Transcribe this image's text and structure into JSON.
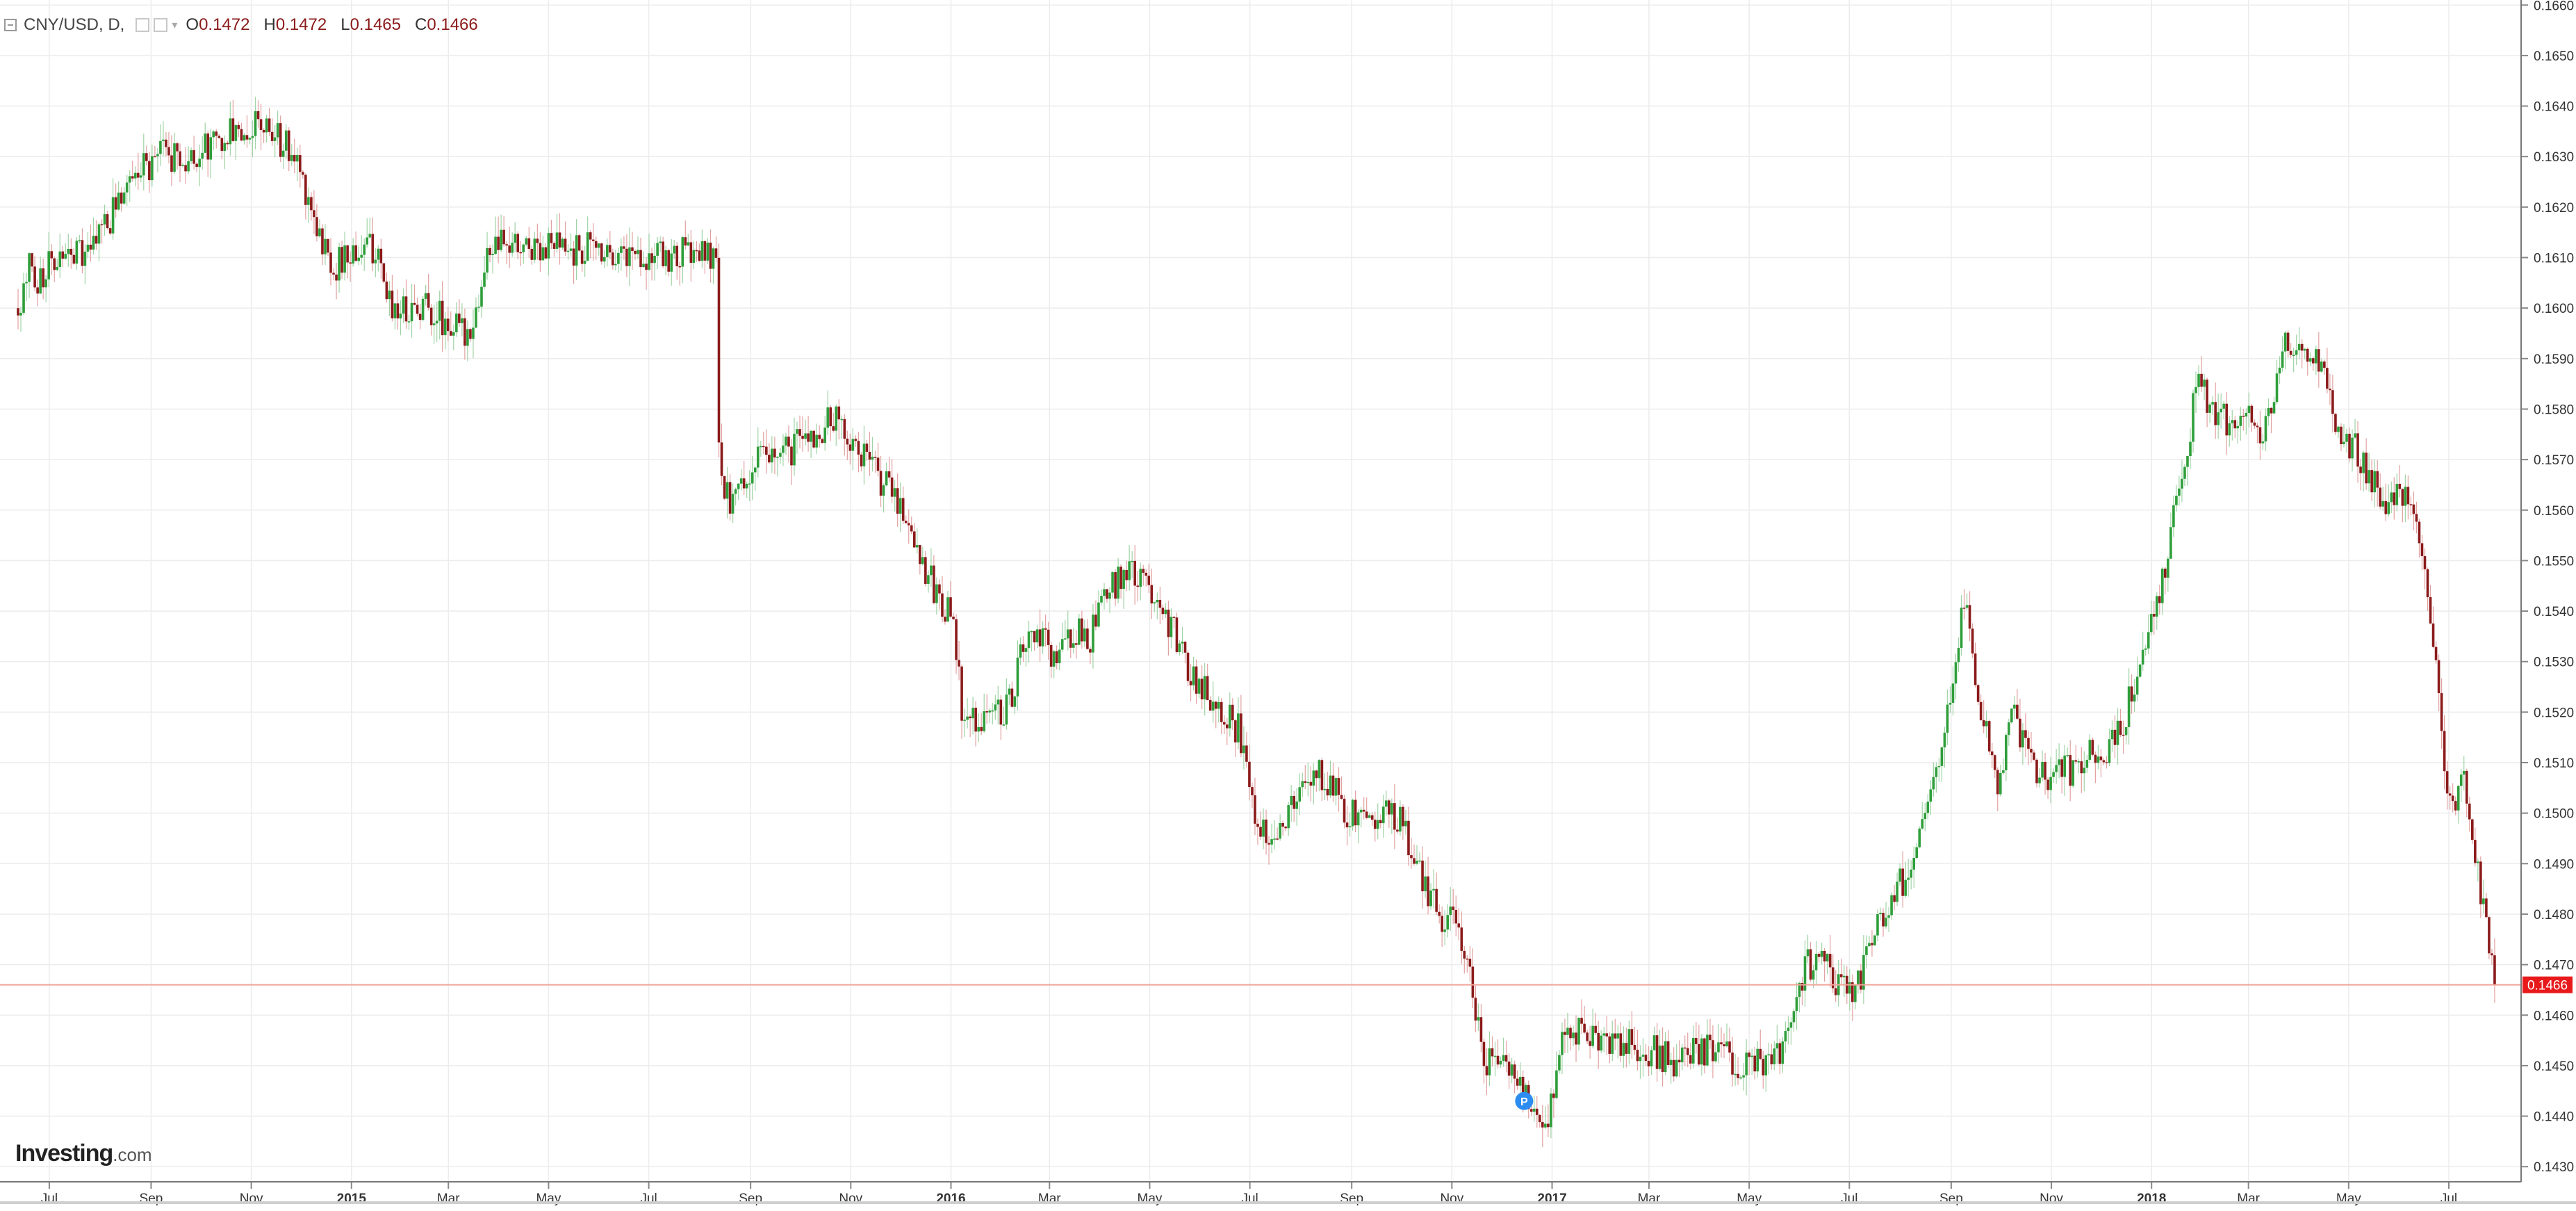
{
  "legend": {
    "symbol": "CNY/USD, D,",
    "open_label": "O",
    "open": "0.1472",
    "high_label": "H",
    "high": "0.1472",
    "low_label": "L",
    "low": "0.1465",
    "close_label": "C",
    "close": "0.1466"
  },
  "logo": {
    "brand": "Investing",
    "tld": ".com"
  },
  "colors": {
    "up": "#2e9e3a",
    "down": "#8b1a1a",
    "grid": "#ececec",
    "last_price_line": "#f2a49a",
    "last_price_tag": "#e8191a",
    "axis_text": "#333333",
    "marker": "#2d8cf0"
  },
  "marker": {
    "icon": "p-marker-icon",
    "label": "P",
    "date": "2016-12-15",
    "price": 0.1443
  },
  "chart_data": {
    "type": "candlestick",
    "title": "",
    "xlabel": "",
    "ylabel": "",
    "x_range": [
      "2014-06-12",
      "2018-07-30"
    ],
    "y_range": [
      0.1427,
      0.1661
    ],
    "y_ticks": [
      0.143,
      0.144,
      0.145,
      0.146,
      0.147,
      0.148,
      0.149,
      0.15,
      0.151,
      0.152,
      0.153,
      0.154,
      0.155,
      0.156,
      0.157,
      0.158,
      0.159,
      0.16,
      0.161,
      0.162,
      0.163,
      0.164,
      0.165,
      0.166
    ],
    "y_tick_format": 4,
    "x_ticks": [
      {
        "date": "2014-07-01",
        "label": "Jul",
        "bold": false
      },
      {
        "date": "2014-09-01",
        "label": "Sep",
        "bold": false
      },
      {
        "date": "2014-11-01",
        "label": "Nov",
        "bold": false
      },
      {
        "date": "2015-01-01",
        "label": "2015",
        "bold": true
      },
      {
        "date": "2015-03-01",
        "label": "Mar",
        "bold": false
      },
      {
        "date": "2015-05-01",
        "label": "May",
        "bold": false
      },
      {
        "date": "2015-07-01",
        "label": "Jul",
        "bold": false
      },
      {
        "date": "2015-09-01",
        "label": "Sep",
        "bold": false
      },
      {
        "date": "2015-11-01",
        "label": "Nov",
        "bold": false
      },
      {
        "date": "2016-01-01",
        "label": "2016",
        "bold": true
      },
      {
        "date": "2016-03-01",
        "label": "Mar",
        "bold": false
      },
      {
        "date": "2016-05-01",
        "label": "May",
        "bold": false
      },
      {
        "date": "2016-07-01",
        "label": "Jul",
        "bold": false
      },
      {
        "date": "2016-09-01",
        "label": "Sep",
        "bold": false
      },
      {
        "date": "2016-11-01",
        "label": "Nov",
        "bold": false
      },
      {
        "date": "2017-01-01",
        "label": "2017",
        "bold": true
      },
      {
        "date": "2017-03-01",
        "label": "Mar",
        "bold": false
      },
      {
        "date": "2017-05-01",
        "label": "May",
        "bold": false
      },
      {
        "date": "2017-07-01",
        "label": "Jul",
        "bold": false
      },
      {
        "date": "2017-09-01",
        "label": "Sep",
        "bold": false
      },
      {
        "date": "2017-11-01",
        "label": "Nov",
        "bold": false
      },
      {
        "date": "2018-01-01",
        "label": "2018",
        "bold": true
      },
      {
        "date": "2018-03-01",
        "label": "Mar",
        "bold": false
      },
      {
        "date": "2018-05-01",
        "label": "May",
        "bold": false
      },
      {
        "date": "2018-07-01",
        "label": "Jul",
        "bold": false
      }
    ],
    "last_price": 0.1466,
    "last_price_label": "0.1466",
    "grid": true,
    "series_path": [
      [
        "2014-06-12",
        0.16
      ],
      [
        "2014-06-18",
        0.1608
      ],
      [
        "2014-06-25",
        0.1606
      ],
      [
        "2014-07-02",
        0.161
      ],
      [
        "2014-07-10",
        0.1612
      ],
      [
        "2014-07-18",
        0.1611
      ],
      [
        "2014-07-28",
        0.1612
      ],
      [
        "2014-08-08",
        0.1618
      ],
      [
        "2014-08-18",
        0.1624
      ],
      [
        "2014-08-28",
        0.1628
      ],
      [
        "2014-09-08",
        0.163
      ],
      [
        "2014-09-18",
        0.163
      ],
      [
        "2014-09-28",
        0.163
      ],
      [
        "2014-10-08",
        0.1632
      ],
      [
        "2014-10-18",
        0.1634
      ],
      [
        "2014-10-28",
        0.1636
      ],
      [
        "2014-11-08",
        0.1636
      ],
      [
        "2014-11-15",
        0.1634
      ],
      [
        "2014-11-22",
        0.1632
      ],
      [
        "2014-11-30",
        0.1628
      ],
      [
        "2014-12-08",
        0.162
      ],
      [
        "2014-12-15",
        0.1612
      ],
      [
        "2014-12-22",
        0.1608
      ],
      [
        "2014-12-29",
        0.161
      ],
      [
        "2015-01-08",
        0.1612
      ],
      [
        "2015-01-15",
        0.1612
      ],
      [
        "2015-01-20",
        0.1604
      ],
      [
        "2015-01-28",
        0.16
      ],
      [
        "2015-02-08",
        0.16
      ],
      [
        "2015-02-15",
        0.1601
      ],
      [
        "2015-02-25",
        0.1598
      ],
      [
        "2015-03-05",
        0.1596
      ],
      [
        "2015-03-12",
        0.1595
      ],
      [
        "2015-03-20",
        0.1602
      ],
      [
        "2015-03-26",
        0.1612
      ],
      [
        "2015-04-05",
        0.1612
      ],
      [
        "2015-04-15",
        0.1612
      ],
      [
        "2015-04-25",
        0.1613
      ],
      [
        "2015-05-05",
        0.1612
      ],
      [
        "2015-05-15",
        0.1611
      ],
      [
        "2015-05-25",
        0.1612
      ],
      [
        "2015-06-05",
        0.1612
      ],
      [
        "2015-06-15",
        0.1611
      ],
      [
        "2015-06-25",
        0.1611
      ],
      [
        "2015-07-05",
        0.161
      ],
      [
        "2015-07-15",
        0.161
      ],
      [
        "2015-07-25",
        0.1611
      ],
      [
        "2015-08-05",
        0.161
      ],
      [
        "2015-08-11",
        0.161
      ],
      [
        "2015-08-12",
        0.1585
      ],
      [
        "2015-08-13",
        0.1565
      ],
      [
        "2015-08-20",
        0.1562
      ],
      [
        "2015-08-28",
        0.1565
      ],
      [
        "2015-09-05",
        0.157
      ],
      [
        "2015-09-15",
        0.157
      ],
      [
        "2015-09-25",
        0.1572
      ],
      [
        "2015-10-05",
        0.1574
      ],
      [
        "2015-10-15",
        0.1576
      ],
      [
        "2015-10-22",
        0.1578
      ],
      [
        "2015-10-30",
        0.1575
      ],
      [
        "2015-11-10",
        0.157
      ],
      [
        "2015-11-20",
        0.1566
      ],
      [
        "2015-11-30",
        0.1562
      ],
      [
        "2015-12-08",
        0.1556
      ],
      [
        "2015-12-15",
        0.155
      ],
      [
        "2015-12-22",
        0.1544
      ],
      [
        "2015-12-31",
        0.154
      ],
      [
        "2016-01-05",
        0.153
      ],
      [
        "2016-01-08",
        0.1518
      ],
      [
        "2016-01-15",
        0.1518
      ],
      [
        "2016-01-25",
        0.152
      ],
      [
        "2016-02-05",
        0.1521
      ],
      [
        "2016-02-15",
        0.1534
      ],
      [
        "2016-02-25",
        0.1534
      ],
      [
        "2016-03-05",
        0.153
      ],
      [
        "2016-03-15",
        0.1536
      ],
      [
        "2016-03-25",
        0.1534
      ],
      [
        "2016-04-05",
        0.1543
      ],
      [
        "2016-04-15",
        0.1548
      ],
      [
        "2016-04-25",
        0.1546
      ],
      [
        "2016-05-05",
        0.1544
      ],
      [
        "2016-05-15",
        0.1536
      ],
      [
        "2016-05-25",
        0.1528
      ],
      [
        "2016-06-05",
        0.1524
      ],
      [
        "2016-06-15",
        0.1521
      ],
      [
        "2016-06-25",
        0.1516
      ],
      [
        "2016-07-01",
        0.1504
      ],
      [
        "2016-07-10",
        0.1496
      ],
      [
        "2016-07-20",
        0.1498
      ],
      [
        "2016-07-30",
        0.1503
      ],
      [
        "2016-08-10",
        0.1508
      ],
      [
        "2016-08-20",
        0.1506
      ],
      [
        "2016-08-30",
        0.15
      ],
      [
        "2016-09-10",
        0.1499
      ],
      [
        "2016-09-20",
        0.15
      ],
      [
        "2016-09-30",
        0.1499
      ],
      [
        "2016-10-08",
        0.1492
      ],
      [
        "2016-10-18",
        0.1484
      ],
      [
        "2016-10-28",
        0.1478
      ],
      [
        "2016-11-05",
        0.1478
      ],
      [
        "2016-11-12",
        0.1468
      ],
      [
        "2016-11-20",
        0.1452
      ],
      [
        "2016-11-30",
        0.145
      ],
      [
        "2016-12-08",
        0.1449
      ],
      [
        "2016-12-15",
        0.1446
      ],
      [
        "2016-12-22",
        0.1439
      ],
      [
        "2016-12-30",
        0.1439
      ],
      [
        "2017-01-05",
        0.1455
      ],
      [
        "2017-01-12",
        0.1458
      ],
      [
        "2017-01-22",
        0.1456
      ],
      [
        "2017-02-05",
        0.1455
      ],
      [
        "2017-02-15",
        0.1455
      ],
      [
        "2017-02-25",
        0.1454
      ],
      [
        "2017-03-08",
        0.1452
      ],
      [
        "2017-03-18",
        0.145
      ],
      [
        "2017-03-28",
        0.1452
      ],
      [
        "2017-04-08",
        0.1453
      ],
      [
        "2017-04-18",
        0.1452
      ],
      [
        "2017-04-28",
        0.145
      ],
      [
        "2017-05-08",
        0.145
      ],
      [
        "2017-05-18",
        0.1451
      ],
      [
        "2017-05-28",
        0.1458
      ],
      [
        "2017-06-05",
        0.147
      ],
      [
        "2017-06-15",
        0.147
      ],
      [
        "2017-06-25",
        0.1466
      ],
      [
        "2017-07-05",
        0.1465
      ],
      [
        "2017-07-15",
        0.1476
      ],
      [
        "2017-07-25",
        0.1482
      ],
      [
        "2017-08-05",
        0.1488
      ],
      [
        "2017-08-15",
        0.1497
      ],
      [
        "2017-08-25",
        0.1512
      ],
      [
        "2017-09-05",
        0.153
      ],
      [
        "2017-09-08",
        0.1544
      ],
      [
        "2017-09-15",
        0.1528
      ],
      [
        "2017-09-22",
        0.1516
      ],
      [
        "2017-09-30",
        0.1505
      ],
      [
        "2017-10-08",
        0.152
      ],
      [
        "2017-10-15",
        0.1514
      ],
      [
        "2017-10-25",
        0.1508
      ],
      [
        "2017-11-05",
        0.1508
      ],
      [
        "2017-11-15",
        0.1508
      ],
      [
        "2017-11-25",
        0.1512
      ],
      [
        "2017-12-05",
        0.1511
      ],
      [
        "2017-12-15",
        0.1518
      ],
      [
        "2017-12-25",
        0.153
      ],
      [
        "2018-01-05",
        0.1542
      ],
      [
        "2018-01-15",
        0.156
      ],
      [
        "2018-01-22",
        0.157
      ],
      [
        "2018-01-30",
        0.1588
      ],
      [
        "2018-02-05",
        0.158
      ],
      [
        "2018-02-15",
        0.1578
      ],
      [
        "2018-02-25",
        0.158
      ],
      [
        "2018-03-08",
        0.1576
      ],
      [
        "2018-03-15",
        0.158
      ],
      [
        "2018-03-25",
        0.1594
      ],
      [
        "2018-04-05",
        0.159
      ],
      [
        "2018-04-15",
        0.159
      ],
      [
        "2018-04-25",
        0.1576
      ],
      [
        "2018-05-05",
        0.1572
      ],
      [
        "2018-05-15",
        0.1566
      ],
      [
        "2018-05-25",
        0.1562
      ],
      [
        "2018-06-05",
        0.1562
      ],
      [
        "2018-06-15",
        0.155
      ],
      [
        "2018-06-22",
        0.1532
      ],
      [
        "2018-06-29",
        0.1506
      ],
      [
        "2018-07-05",
        0.15
      ],
      [
        "2018-07-10",
        0.1508
      ],
      [
        "2018-07-16",
        0.1494
      ],
      [
        "2018-07-23",
        0.148
      ],
      [
        "2018-07-30",
        0.1466
      ]
    ]
  }
}
